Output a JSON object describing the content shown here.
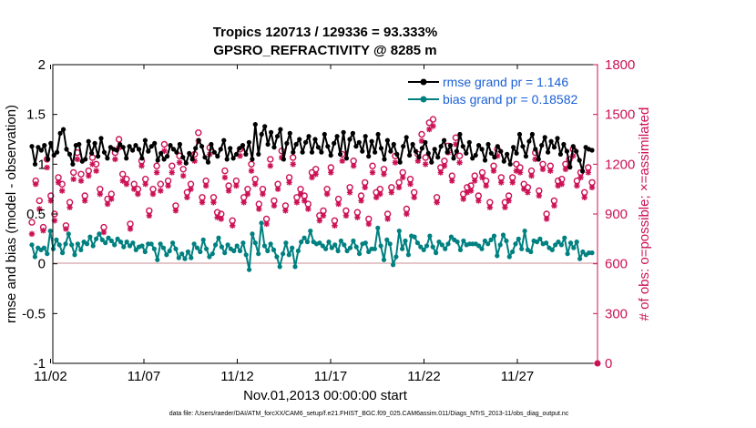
{
  "chart_data": {
    "type": "line",
    "title": "Tropics 120713 / 129336 = 93.333%",
    "subtitle": "GPSRO_REFRACTIVITY @ 8285 m",
    "xlabel": "Nov.01,2013 00:00:00 start",
    "ylabel": "rmse and bias (model - observation)",
    "y2label": "# of obs: o=possible; ×=assimilated",
    "footnote": "data file: /Users/raeder/DAI/ATM_forcXX/CAM6_setup/f.e21.FHIST_BGC.f09_025.CAM6assim.011/Diags_NTrS_2013-11/obs_diag_output.nc",
    "xlim": [
      0.5,
      31.0
    ],
    "ylim": [
      -1,
      2
    ],
    "y2lim": [
      0,
      1800
    ],
    "xticks": [
      {
        "pos": 2,
        "label": "11/02"
      },
      {
        "pos": 7,
        "label": "11/07"
      },
      {
        "pos": 12,
        "label": "11/12"
      },
      {
        "pos": 17,
        "label": "11/17"
      },
      {
        "pos": 22,
        "label": "11/22"
      },
      {
        "pos": 27,
        "label": "11/27"
      }
    ],
    "yticks": [
      "-1",
      "-0.5",
      "0",
      "0.5",
      "1",
      "1.5",
      "2"
    ],
    "y2ticks": [
      "0",
      "300",
      "600",
      "900",
      "1200",
      "1500",
      "1800"
    ],
    "series": [
      {
        "name": "rmse",
        "legend": "rmse grand pr = 1.146",
        "color": "#000000",
        "values": [
          1.18,
          1.0,
          1.17,
          1.14,
          1.19,
          1.05,
          1.21,
          1.09,
          1.12,
          1.31,
          1.35,
          1.15,
          1.1,
          1.0,
          1.19,
          1.2,
          1.03,
          1.05,
          1.23,
          1.11,
          1.21,
          1.08,
          1.26,
          1.12,
          1.06,
          1.17,
          1.15,
          1.14,
          1.2,
          1.17,
          1.06,
          1.18,
          1.14,
          1.19,
          1.15,
          1.06,
          1.24,
          1.13,
          1.18,
          1.21,
          1.04,
          1.11,
          1.05,
          1.08,
          1.19,
          1.15,
          1.12,
          1.2,
          1.07,
          1.01,
          1.11,
          1.05,
          1.16,
          1.24,
          1.18,
          1.07,
          1.02,
          1.2,
          1.12,
          1.08,
          1.15,
          1.24,
          1.05,
          1.16,
          1.06,
          1.1,
          1.16,
          1.19,
          1.1,
          1.22,
          1.05,
          1.4,
          1.1,
          1.3,
          1.38,
          1.2,
          1.32,
          1.17,
          1.28,
          1.35,
          1.05,
          1.21,
          1.31,
          1.12,
          1.2,
          1.25,
          1.12,
          1.22,
          1.28,
          1.12,
          1.25,
          1.17,
          1.12,
          1.3,
          1.18,
          1.09,
          1.21,
          1.28,
          1.1,
          1.32,
          1.06,
          1.25,
          1.31,
          1.18,
          1.22,
          1.13,
          1.28,
          1.08,
          1.23,
          1.12,
          1.3,
          1.16,
          1.05,
          1.24,
          1.13,
          1.2,
          1.1,
          1.02,
          1.18,
          1.27,
          1.09,
          1.2,
          1.13,
          1.07,
          1.16,
          1.22,
          1.11,
          1.02,
          1.15,
          1.07,
          1.18,
          1.24,
          1.12,
          1.19,
          1.06,
          1.13,
          1.3,
          1.18,
          1.11,
          1.22,
          1.06,
          1.09,
          1.19,
          1.15,
          1.04,
          1.2,
          1.11,
          1.07,
          1.18,
          1.13,
          1.03,
          1.1,
          1.0,
          1.17,
          1.11,
          1.3,
          1.18,
          1.08,
          1.23,
          1.3,
          1.15,
          1.05,
          1.19,
          1.27,
          1.12,
          1.23,
          1.17,
          1.26,
          1.1,
          1.2,
          1.13,
          0.97,
          1.18,
          1.13,
          1.04,
          0.93,
          1.17,
          1.15,
          1.14
        ]
      },
      {
        "name": "bias",
        "legend": "bias grand pr = 0.18582",
        "color": "#008080",
        "values": [
          0.19,
          0.07,
          0.16,
          0.14,
          0.16,
          0.1,
          0.33,
          0.15,
          0.24,
          0.19,
          0.11,
          0.2,
          0.3,
          0.19,
          0.09,
          0.2,
          0.14,
          0.22,
          0.2,
          0.27,
          0.18,
          0.25,
          0.3,
          0.24,
          0.21,
          0.26,
          0.23,
          0.19,
          0.25,
          0.22,
          0.17,
          0.22,
          0.18,
          0.21,
          0.14,
          0.17,
          0.18,
          0.12,
          0.2,
          0.2,
          0.15,
          0.04,
          0.2,
          0.16,
          0.09,
          0.13,
          0.21,
          0.15,
          0.06,
          0.1,
          0.05,
          0.12,
          0.06,
          0.2,
          0.16,
          0.12,
          0.24,
          0.15,
          0.07,
          0.1,
          0.19,
          0.26,
          0.17,
          0.11,
          0.19,
          0.15,
          0.13,
          0.18,
          0.13,
          0.21,
          0.09,
          -0.06,
          0.3,
          0.21,
          0.1,
          0.41,
          0.18,
          0.13,
          0.2,
          0.14,
          0.07,
          -0.03,
          0.1,
          0.21,
          0.09,
          0.16,
          -0.03,
          0.13,
          0.22,
          0.26,
          0.22,
          0.33,
          0.22,
          0.2,
          0.21,
          0.18,
          0.15,
          0.22,
          0.16,
          0.19,
          0.13,
          0.23,
          0.19,
          0.13,
          0.16,
          0.23,
          0.17,
          0.1,
          0.2,
          0.21,
          0.12,
          0.15,
          0.15,
          0.36,
          0.18,
          0.04,
          0.24,
          0.2,
          -0.01,
          0.07,
          0.33,
          0.15,
          0.23,
          0.09,
          0.28,
          0.27,
          0.21,
          0.17,
          0.14,
          0.18,
          0.28,
          0.17,
          0.11,
          0.22,
          0.19,
          0.15,
          0.2,
          0.27,
          0.24,
          0.22,
          0.14,
          0.23,
          0.19,
          0.2,
          0.2,
          0.2,
          0.18,
          0.15,
          0.23,
          0.2,
          0.24,
          0.28,
          0.08,
          0.19,
          0.29,
          0.23,
          0.07,
          0.12,
          0.2,
          0.25,
          0.15,
          0.33,
          0.14,
          0.12,
          0.23,
          0.22,
          0.25,
          0.2,
          0.21,
          0.16,
          0.14,
          0.19,
          0.22,
          0.19,
          0.26,
          0.1,
          0.21,
          0.16,
          0.22,
          0.05,
          0.12,
          0.09,
          0.11,
          0.11
        ]
      },
      {
        "name": "possible",
        "marker": "o",
        "color": "#cc1155",
        "axis": "right",
        "values": [
          850,
          1100,
          980,
          820,
          1230,
          1010,
          900,
          1120,
          1080,
          830,
          970,
          1150,
          1270,
          1140,
          1010,
          1160,
          1240,
          1200,
          1050,
          820,
          990,
          1020,
          1270,
          1350,
          1140,
          1110,
          840,
          1080,
          1050,
          1220,
          1110,
          920,
          1050,
          1190,
          1080,
          1320,
          1100,
          1190,
          950,
          1250,
          1170,
          1030,
          1080,
          1260,
          1390,
          1000,
          1100,
          1300,
          1000,
          910,
          900,
          1160,
          1070,
          860,
          1100,
          1290,
          1000,
          1050,
          1200,
          1110,
          960,
          1050,
          870,
          1230,
          980,
          1080,
          1280,
          950,
          1120,
          1240,
          1000,
          1050,
          1010,
          960,
          1150,
          1170,
          890,
          920,
          1050,
          1180,
          860,
          990,
          1260,
          920,
          1060,
          1220,
          910,
          1010,
          1090,
          870,
          1190,
          1030,
          1050,
          1170,
          900,
          1060,
          1250,
          1090,
          1150,
          930,
          1110,
          1030,
          1260,
          1380,
          1240,
          1450,
          1470,
          1000,
          1180,
          1220,
          1310,
          1130,
          1360,
          1250,
          1020,
          1060,
          1070,
          1130,
          1010,
          1150,
          1100,
          970,
          1190,
          1290,
          1120,
          970,
          1010,
          1120,
          1200,
          1180,
          1080,
          1060,
          1160,
          1270,
          1040,
          1200,
          900,
          1190,
          980,
          1100,
          1110,
          1200,
          1230,
          1290,
          1100,
          1150,
          1030,
          1180,
          1090
        ]
      },
      {
        "name": "assimilated",
        "marker": "x",
        "color": "#cc1155",
        "axis": "right",
        "values": [
          780,
          1080,
          930,
          800,
          1180,
          980,
          860,
          1090,
          1040,
          810,
          940,
          1110,
          1230,
          1100,
          980,
          1130,
          1200,
          1160,
          1020,
          790,
          960,
          990,
          1230,
          1300,
          1100,
          1080,
          810,
          1050,
          1020,
          1190,
          1080,
          890,
          1020,
          1150,
          1040,
          1280,
          1070,
          1150,
          920,
          1210,
          1130,
          1000,
          1050,
          1220,
          1340,
          970,
          1070,
          1260,
          970,
          880,
          870,
          1120,
          1040,
          830,
          1070,
          1250,
          970,
          1020,
          1160,
          1080,
          930,
          1020,
          840,
          1190,
          950,
          1050,
          1240,
          920,
          1090,
          1200,
          970,
          1020,
          980,
          930,
          1120,
          1140,
          860,
          890,
          1020,
          1150,
          830,
          960,
          1220,
          890,
          1030,
          1190,
          880,
          980,
          1060,
          840,
          1150,
          1000,
          1020,
          1140,
          870,
          1030,
          1210,
          1060,
          1120,
          900,
          1080,
          1000,
          1220,
          1340,
          1200,
          1410,
          1430,
          970,
          1150,
          1190,
          1270,
          1100,
          1320,
          1210,
          990,
          1030,
          1040,
          1100,
          980,
          1120,
          1070,
          940,
          1160,
          1250,
          1090,
          940,
          980,
          1090,
          1160,
          1150,
          1050,
          1030,
          1130,
          1230,
          1010,
          1170,
          870,
          1160,
          950,
          1070,
          1080,
          1170,
          1190,
          1250,
          1070,
          1120,
          1000,
          1150,
          1060
        ]
      }
    ]
  }
}
